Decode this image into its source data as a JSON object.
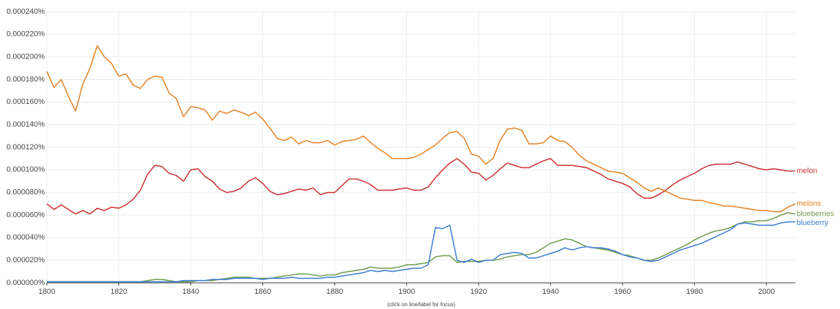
{
  "chart_data": {
    "type": "line",
    "footer": "(click on line/label for focus)",
    "xlim": [
      1800,
      2008
    ],
    "xticks": [
      1800,
      1820,
      1840,
      1860,
      1880,
      1900,
      1920,
      1940,
      1960,
      1980,
      2000
    ],
    "ylim": [
      0,
      0.00024
    ],
    "yticks": [
      {
        "value": 0,
        "label": "0.000000%"
      },
      {
        "value": 2e-05,
        "label": "0.000020%"
      },
      {
        "value": 4e-05,
        "label": "0.000040%"
      },
      {
        "value": 6e-05,
        "label": "0.000060%"
      },
      {
        "value": 8e-05,
        "label": "0.000080%"
      },
      {
        "value": 0.0001,
        "label": "0.000100%"
      },
      {
        "value": 0.00012,
        "label": "0.000120%"
      },
      {
        "value": 0.00014,
        "label": "0.000140%"
      },
      {
        "value": 0.00016,
        "label": "0.000160%"
      },
      {
        "value": 0.00018,
        "label": "0.000180%"
      },
      {
        "value": 0.0002,
        "label": "0.000200%"
      },
      {
        "value": 0.00022,
        "label": "0.000220%"
      },
      {
        "value": 0.00024,
        "label": "0.000240%"
      }
    ],
    "grid": true,
    "legend": "line-end",
    "x": [
      1800,
      1802,
      1804,
      1806,
      1808,
      1810,
      1812,
      1814,
      1816,
      1818,
      1820,
      1822,
      1824,
      1826,
      1828,
      1830,
      1832,
      1834,
      1836,
      1838,
      1840,
      1842,
      1844,
      1846,
      1848,
      1850,
      1852,
      1854,
      1856,
      1858,
      1860,
      1862,
      1864,
      1866,
      1868,
      1870,
      1872,
      1874,
      1876,
      1878,
      1880,
      1882,
      1884,
      1886,
      1888,
      1890,
      1892,
      1894,
      1896,
      1898,
      1900,
      1902,
      1904,
      1906,
      1908,
      1910,
      1912,
      1914,
      1916,
      1918,
      1920,
      1922,
      1924,
      1926,
      1928,
      1930,
      1932,
      1934,
      1936,
      1938,
      1940,
      1942,
      1944,
      1946,
      1948,
      1950,
      1952,
      1954,
      1956,
      1958,
      1960,
      1962,
      1964,
      1966,
      1968,
      1970,
      1972,
      1974,
      1976,
      1978,
      1980,
      1982,
      1984,
      1986,
      1988,
      1990,
      1992,
      1994,
      1996,
      1998,
      2000,
      2002,
      2004,
      2006,
      2008
    ],
    "series": [
      {
        "name": "melon",
        "color": "#cc3333",
        "values": [
          7e-05,
          6.5e-05,
          6.9e-05,
          6.5e-05,
          6.1e-05,
          6.4e-05,
          6.1e-05,
          6.6e-05,
          6.4e-05,
          6.7e-05,
          6.6e-05,
          6.9e-05,
          7.4e-05,
          8.2e-05,
          9.6e-05,
          0.000104,
          0.000103,
          9.7e-05,
          9.5e-05,
          9e-05,
          0.0001,
          0.000101,
          9.4e-05,
          9e-05,
          8.3e-05,
          8e-05,
          8.1e-05,
          8.4e-05,
          9e-05,
          9.3e-05,
          8.8e-05,
          8.1e-05,
          7.8e-05,
          7.9e-05,
          8.1e-05,
          8.3e-05,
          8.2e-05,
          8.4e-05,
          7.8e-05,
          8e-05,
          8e-05,
          8.6e-05,
          9.2e-05,
          9.2e-05,
          9e-05,
          8.7e-05,
          8.2e-05,
          8.2e-05,
          8.2e-05,
          8.3e-05,
          8.4e-05,
          8.2e-05,
          8.2e-05,
          8.5e-05,
          9.3e-05,
          0.0001,
          0.000106,
          0.00011,
          0.000105,
          9.8e-05,
          9.7e-05,
          9.1e-05,
          9.5e-05,
          0.000101,
          0.000106,
          0.000104,
          0.000102,
          0.000102,
          0.000105,
          0.000108,
          0.00011,
          0.000104,
          0.000104,
          0.000104,
          0.000103,
          0.000102,
          9.9e-05,
          9.6e-05,
          9.2e-05,
          9e-05,
          8.8e-05,
          8.5e-05,
          7.9e-05,
          7.5e-05,
          7.5e-05,
          7.8e-05,
          8.2e-05,
          8.7e-05,
          9.1e-05,
          9.4e-05,
          9.7e-05,
          0.000101,
          0.000104,
          0.000105,
          0.000105,
          0.000105,
          0.000107,
          0.000105,
          0.000103,
          0.000101,
          0.0001,
          0.000101,
          0.0001,
          9.9e-05,
          9.9e-05
        ]
      },
      {
        "name": "melons",
        "color": "#e6842a",
        "values": [
          0.000187,
          0.000173,
          0.00018,
          0.000165,
          0.000152,
          0.000176,
          0.00019,
          0.00021,
          0.0002,
          0.000194,
          0.000183,
          0.000185,
          0.000175,
          0.000172,
          0.00018,
          0.000183,
          0.000182,
          0.000168,
          0.000163,
          0.000147,
          0.000156,
          0.000155,
          0.000153,
          0.000144,
          0.000152,
          0.00015,
          0.000153,
          0.000151,
          0.000148,
          0.000151,
          0.000145,
          0.000137,
          0.000128,
          0.000126,
          0.000129,
          0.000123,
          0.000126,
          0.000124,
          0.000124,
          0.000126,
          0.000122,
          0.000125,
          0.000126,
          0.000127,
          0.00013,
          0.000124,
          0.000119,
          0.000115,
          0.00011,
          0.00011,
          0.00011,
          0.000111,
          0.000114,
          0.000118,
          0.000122,
          0.000128,
          0.000133,
          0.000134,
          0.000128,
          0.000114,
          0.000112,
          0.000105,
          0.00011,
          0.000126,
          0.000136,
          0.000137,
          0.000135,
          0.000123,
          0.000123,
          0.000124,
          0.00013,
          0.000126,
          0.000125,
          0.00012,
          0.000113,
          0.000108,
          0.000105,
          0.000102,
          9.9e-05,
          9.8e-05,
          9.7e-05,
          9.3e-05,
          8.9e-05,
          8.4e-05,
          8.1e-05,
          8.4e-05,
          8.1e-05,
          7.8e-05,
          7.5e-05,
          7.4e-05,
          7.3e-05,
          7.3e-05,
          7.1e-05,
          7e-05,
          6.8e-05,
          6.8e-05,
          6.7e-05,
          6.6e-05,
          6.5e-05,
          6.4e-05,
          6.4e-05,
          6.3e-05,
          6.3e-05,
          6.7e-05,
          7e-05
        ]
      },
      {
        "name": "blueberries",
        "color": "#739e4e",
        "values": [
          1e-06,
          1e-06,
          1e-06,
          1e-06,
          1e-06,
          1e-06,
          1e-06,
          1e-06,
          1e-06,
          1e-06,
          1e-06,
          1e-06,
          1e-06,
          1e-06,
          2e-06,
          3e-06,
          3e-06,
          2e-06,
          1e-06,
          1e-06,
          1e-06,
          2e-06,
          2e-06,
          2e-06,
          3e-06,
          4e-06,
          5e-06,
          5e-06,
          5e-06,
          4e-06,
          4e-06,
          4e-06,
          5e-06,
          6e-06,
          7e-06,
          8e-06,
          8e-06,
          7e-06,
          6e-06,
          7e-06,
          7e-06,
          9e-06,
          1e-05,
          1.1e-05,
          1.2e-05,
          1.4e-05,
          1.3e-05,
          1.3e-05,
          1.3e-05,
          1.4e-05,
          1.6e-05,
          1.6e-05,
          1.7e-05,
          1.8e-05,
          2.3e-05,
          2.4e-05,
          2.4e-05,
          1.8e-05,
          1.9e-05,
          1.9e-05,
          1.9e-05,
          2e-05,
          2e-05,
          2.1e-05,
          2.3e-05,
          2.4e-05,
          2.5e-05,
          2.5e-05,
          2.7e-05,
          3.1e-05,
          3.5e-05,
          3.7e-05,
          3.9e-05,
          3.8e-05,
          3.5e-05,
          3.2e-05,
          3.1e-05,
          3e-05,
          2.9e-05,
          2.7e-05,
          2.5e-05,
          2.4e-05,
          2.2e-05,
          2e-05,
          2e-05,
          2.2e-05,
          2.5e-05,
          2.8e-05,
          3.1e-05,
          3.4e-05,
          3.8e-05,
          4.1e-05,
          4.4e-05,
          4.6e-05,
          4.7e-05,
          4.9e-05,
          5.2e-05,
          5.4e-05,
          5.4e-05,
          5.5e-05,
          5.5e-05,
          5.7e-05,
          6e-05,
          6.2e-05,
          6.1e-05
        ]
      },
      {
        "name": "blueberry",
        "color": "#3f7fd4",
        "values": [
          1e-06,
          1e-06,
          1e-06,
          1e-06,
          1e-06,
          1e-06,
          1e-06,
          1e-06,
          1e-06,
          1e-06,
          1e-06,
          1e-06,
          1e-06,
          1e-06,
          1e-06,
          1e-06,
          1e-06,
          1e-06,
          1e-06,
          2e-06,
          2e-06,
          2e-06,
          2e-06,
          3e-06,
          3e-06,
          3e-06,
          4e-06,
          4e-06,
          4e-06,
          4e-06,
          3e-06,
          4e-06,
          4e-06,
          4e-06,
          5e-06,
          4e-06,
          4e-06,
          4e-06,
          4e-06,
          5e-06,
          5e-06,
          6e-06,
          7e-06,
          8e-06,
          9e-06,
          1.1e-05,
          1e-05,
          1.1e-05,
          1e-05,
          1.1e-05,
          1.2e-05,
          1.3e-05,
          1.3e-05,
          1.6e-05,
          4.9e-05,
          4.8e-05,
          5.1e-05,
          2e-05,
          1.8e-05,
          2.1e-05,
          1.8e-05,
          2e-05,
          2e-05,
          2.5e-05,
          2.6e-05,
          2.7e-05,
          2.6e-05,
          2.2e-05,
          2.2e-05,
          2.4e-05,
          2.6e-05,
          2.8e-05,
          3.1e-05,
          2.9e-05,
          3.1e-05,
          3.2e-05,
          3.1e-05,
          3.1e-05,
          3e-05,
          2.8e-05,
          2.5e-05,
          2.3e-05,
          2.2e-05,
          2e-05,
          1.9e-05,
          2e-05,
          2.3e-05,
          2.6e-05,
          2.9e-05,
          3.1e-05,
          3.3e-05,
          3.5e-05,
          3.8e-05,
          4.1e-05,
          4.4e-05,
          4.7e-05,
          5.2e-05,
          5.3e-05,
          5.2e-05,
          5.1e-05,
          5.1e-05,
          5.1e-05,
          5.3e-05,
          5.4e-05,
          5.4e-05
        ]
      }
    ]
  }
}
